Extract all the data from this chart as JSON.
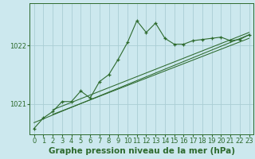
{
  "title": "Graphe pression niveau de la mer (hPa)",
  "background_color": "#cce8ee",
  "plot_bg_color": "#cce8ee",
  "grid_color": "#aacdd4",
  "line_color": "#2d6a2d",
  "xlim": [
    -0.5,
    23.5
  ],
  "ylim": [
    1020.48,
    1022.72
  ],
  "yticks": [
    1021,
    1022
  ],
  "xtick_labels": [
    "0",
    "1",
    "2",
    "3",
    "4",
    "5",
    "6",
    "7",
    "8",
    "9",
    "10",
    "11",
    "12",
    "13",
    "14",
    "15",
    "16",
    "17",
    "18",
    "19",
    "20",
    "21",
    "22",
    "23"
  ],
  "main_series": [
    [
      0,
      1020.58
    ],
    [
      1,
      1020.76
    ],
    [
      2,
      1020.87
    ],
    [
      3,
      1021.04
    ],
    [
      4,
      1021.04
    ],
    [
      5,
      1021.22
    ],
    [
      6,
      1021.1
    ],
    [
      7,
      1021.38
    ],
    [
      8,
      1021.5
    ],
    [
      9,
      1021.76
    ],
    [
      10,
      1022.05
    ],
    [
      11,
      1022.42
    ],
    [
      12,
      1022.22
    ],
    [
      13,
      1022.38
    ],
    [
      14,
      1022.12
    ],
    [
      15,
      1022.02
    ],
    [
      16,
      1022.02
    ],
    [
      17,
      1022.08
    ],
    [
      18,
      1022.1
    ],
    [
      19,
      1022.12
    ],
    [
      20,
      1022.14
    ],
    [
      21,
      1022.08
    ],
    [
      22,
      1022.1
    ],
    [
      23,
      1022.18
    ]
  ],
  "trend_lines": [
    [
      [
        0,
        1020.68
      ],
      [
        23,
        1022.18
      ]
    ],
    [
      [
        2,
        1020.82
      ],
      [
        23,
        1022.12
      ]
    ],
    [
      [
        2,
        1020.9
      ],
      [
        23,
        1022.22
      ]
    ]
  ],
  "title_fontsize": 7.5,
  "tick_fontsize": 6.0
}
